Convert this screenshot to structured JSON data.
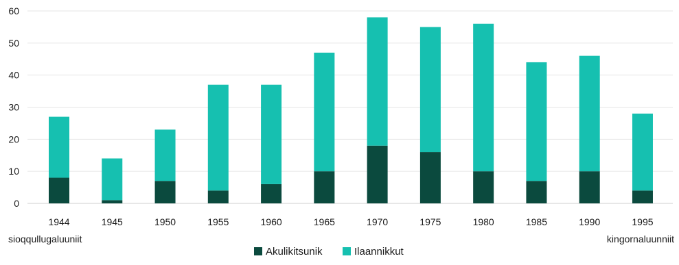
{
  "chart_data": {
    "type": "bar",
    "stacked": true,
    "categories": [
      "1944",
      "1945",
      "1950",
      "1955",
      "1960",
      "1965",
      "1970",
      "1975",
      "1980",
      "1985",
      "1990",
      "1995"
    ],
    "series": [
      {
        "name": "Akulikitsunik",
        "color": "#0b4a3e",
        "values": [
          8,
          1,
          7,
          4,
          6,
          10,
          18,
          16,
          10,
          7,
          10,
          4
        ]
      },
      {
        "name": "Ilaannikkut",
        "color": "#16c0b0",
        "values": [
          19,
          13,
          16,
          33,
          31,
          37,
          40,
          39,
          46,
          37,
          36,
          24
        ]
      }
    ],
    "totals": [
      27,
      14,
      23,
      37,
      37,
      47,
      58,
      55,
      56,
      44,
      46,
      28
    ],
    "ylim": [
      0,
      60
    ],
    "yticks": [
      0,
      10,
      20,
      30,
      40,
      50,
      60
    ],
    "grid": true,
    "legend_position": "bottom",
    "annotations": {
      "left": "sioqqullugaluuniit",
      "right": "kingornaluunniit"
    }
  }
}
